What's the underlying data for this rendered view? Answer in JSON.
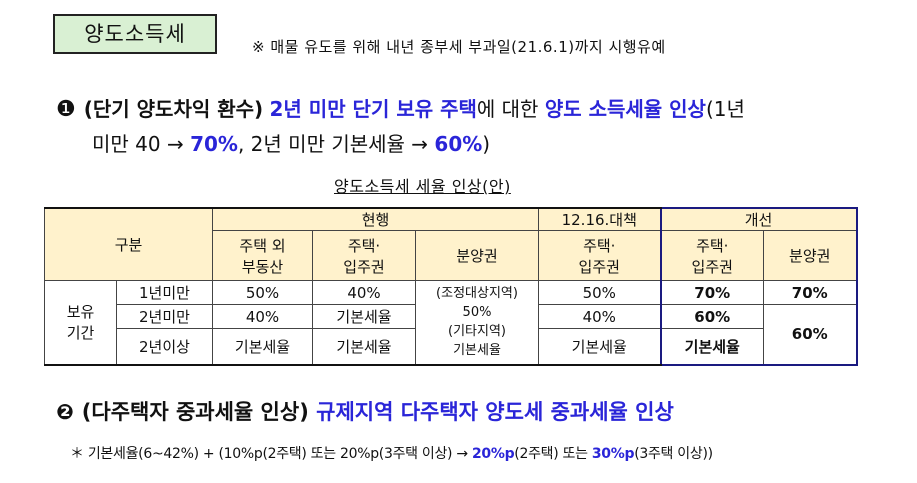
{
  "title": "양도소득세",
  "top_note": "※ 매물 유도를 위해 내년 종부세 부과일(21.6.1)까지 시행유예",
  "item1": {
    "number": "❶",
    "part_a": "(단기 양도차익 환수)",
    "part_b": "2년 미만 단기 보유 주택",
    "part_c": "에 대한",
    "part_d": "양도 소득세율 인상",
    "part_e": "(1년",
    "line2_a": "미만 40 →",
    "line2_b": "70%",
    "line2_c": ", 2년 미만 기본세율 →",
    "line2_d": "60%",
    "line2_e": ")"
  },
  "table": {
    "title": "양도소득세 세율 인상(안)",
    "header": {
      "category": "구분",
      "current": "현행",
      "dec16": "12.16.대책",
      "revised": "개선",
      "col_non_housing_1": "주택 외",
      "col_non_housing_2": "부동산",
      "col_housing_1": "주택·",
      "col_housing_2": "입주권",
      "col_presale": "분양권"
    },
    "row_group_1": "보유",
    "row_group_2": "기간",
    "rows": [
      {
        "period": "1년미만",
        "non_housing": "50%",
        "housing": "40%",
        "dec16": "50%",
        "rev_housing": "70%",
        "rev_presale": "70%"
      },
      {
        "period": "2년미만",
        "non_housing": "40%",
        "housing": "기본세율",
        "dec16": "40%",
        "rev_housing": "60%",
        "rev_presale": "60%"
      },
      {
        "period": "2년이상",
        "non_housing": "기본세율",
        "housing": "기본세율",
        "dec16": "기본세율",
        "rev_housing": "기본세율"
      }
    ],
    "presale_current_1": "(조정대상지역)",
    "presale_current_2": "50%",
    "presale_current_3": "(기타지역)",
    "presale_current_4": "기본세율"
  },
  "item2": {
    "number": "❷",
    "part_a": "(다주택자 중과세율 인상)",
    "part_b": "규제지역 다주택자 양도세 중과세율 인상"
  },
  "footnote": {
    "a": "＊ 기본세율(6~42%) + (10%p(2주택) 또는 20%p(3주택 이상) →",
    "b": "20%p",
    "c": "(2주택) 또는",
    "d": "30%p",
    "e": "(3주택 이상))"
  }
}
